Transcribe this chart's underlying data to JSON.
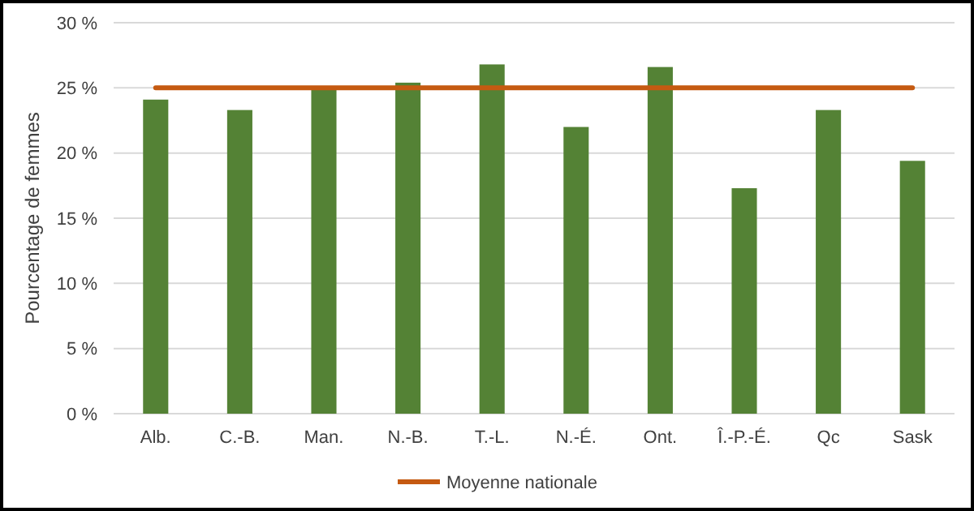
{
  "chart_data": {
    "type": "bar",
    "ylabel": "Pourcentage de femmes",
    "categories": [
      "Alb.",
      "C.-B.",
      "Man.",
      "N.-B.",
      "T.-L.",
      "N.-É.",
      "Ont.",
      "Î.-P.-É.",
      "Qc",
      "Sask"
    ],
    "series": [
      {
        "color": "#548235",
        "values": [
          24.1,
          23.3,
          25.0,
          25.4,
          26.8,
          22.0,
          26.6,
          17.3,
          23.3,
          19.4
        ]
      },
      {
        "type": "line",
        "name": "Moyenne nationale",
        "color": "#c55a11",
        "values": [
          25,
          25,
          25,
          25,
          25,
          25,
          25,
          25,
          25,
          25
        ]
      }
    ],
    "ylim": [
      0,
      30
    ],
    "yticks": [
      {
        "value": 0,
        "label": "0 %"
      },
      {
        "value": 5,
        "label": "5 %"
      },
      {
        "value": 10,
        "label": "10 %"
      },
      {
        "value": 15,
        "label": "15 %"
      },
      {
        "value": 20,
        "label": "20 %"
      },
      {
        "value": 25,
        "label": "25 %"
      },
      {
        "value": 30,
        "label": "30 %"
      }
    ],
    "grid": "y",
    "legend": "bottom",
    "marker": "none",
    "line_style": "solid"
  }
}
